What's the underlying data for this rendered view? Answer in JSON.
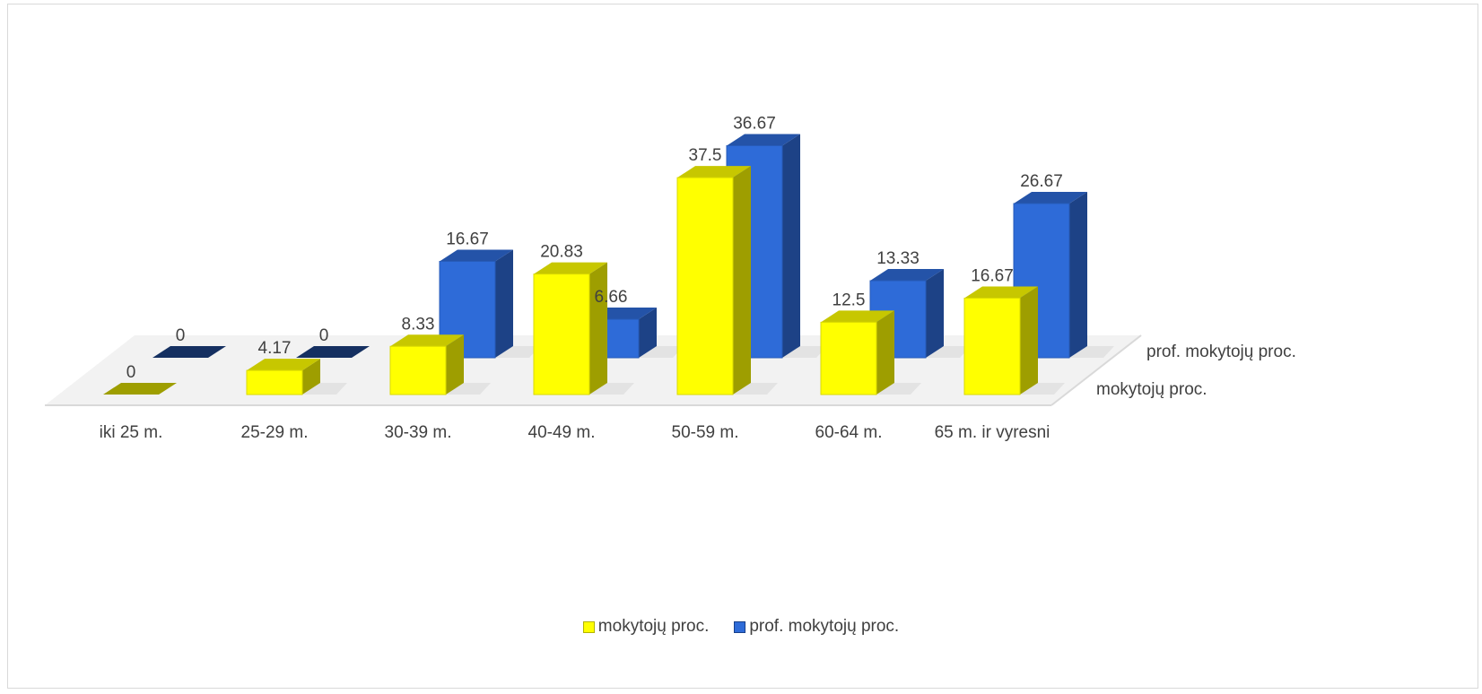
{
  "chart_data": {
    "type": "bar",
    "style": "3d-clustered-column",
    "categories": [
      "iki 25 m.",
      "25-29 m.",
      "30-39 m.",
      "40-49 m.",
      "50-59 m.",
      "60-64 m.",
      "65 m. ir vyresni"
    ],
    "series": [
      {
        "name": "mokytojų proc.",
        "values": [
          0,
          4.17,
          8.33,
          20.83,
          37.5,
          12.5,
          16.67
        ],
        "color": "#ffff00"
      },
      {
        "name": "prof. mokytojų proc.",
        "values": [
          0,
          0,
          16.67,
          6.66,
          36.67,
          13.33,
          26.67
        ],
        "color": "#2e6bd8"
      }
    ],
    "data_labels": true,
    "depth_axis_labels": [
      "mokytojų proc.",
      "prof. mokytojų proc."
    ],
    "legend_position": "bottom",
    "grid": false
  },
  "legend": {
    "items": [
      {
        "label": "mokytojų proc.",
        "color": "#ffff00"
      },
      {
        "label": "prof. mokytojų proc.",
        "color": "#2e6bd8"
      }
    ]
  }
}
